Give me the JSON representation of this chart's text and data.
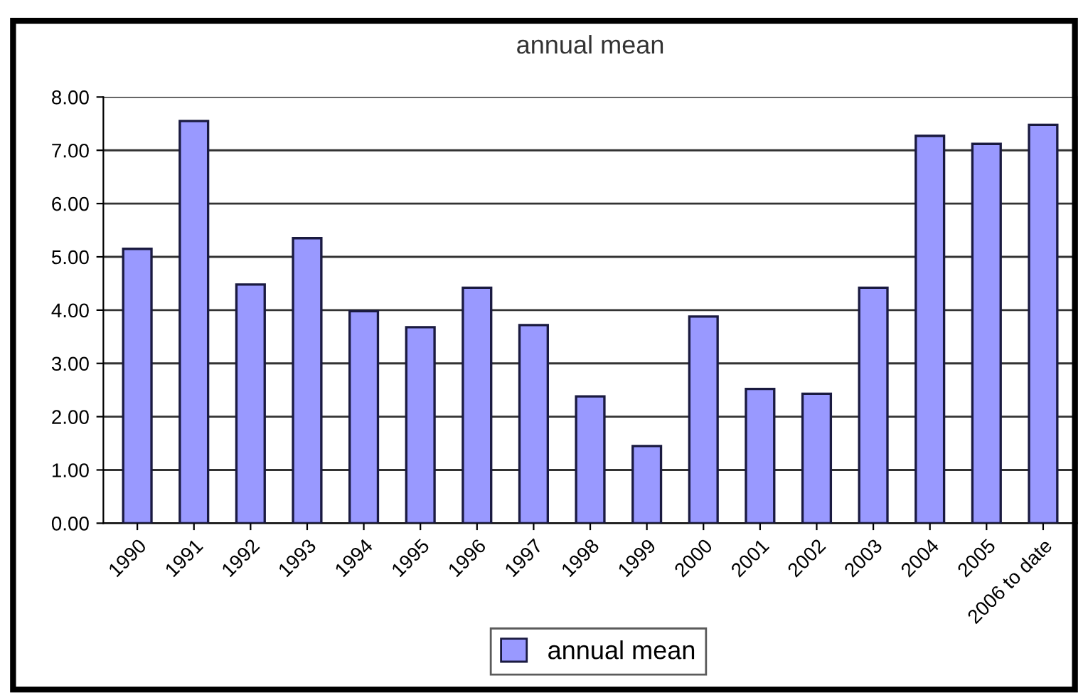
{
  "chart_data": {
    "type": "bar",
    "title": "annual mean",
    "categories": [
      "1990",
      "1991",
      "1992",
      "1993",
      "1994",
      "1995",
      "1996",
      "1997",
      "1998",
      "1999",
      "2000",
      "2001",
      "2002",
      "2003",
      "2004",
      "2005",
      "2006 to date"
    ],
    "series": [
      {
        "name": "annual mean",
        "color": "#9999ff",
        "values": [
          5.15,
          7.55,
          4.48,
          5.35,
          3.98,
          3.68,
          4.42,
          3.72,
          2.38,
          1.45,
          3.88,
          2.52,
          2.43,
          4.42,
          7.27,
          7.12,
          7.48
        ]
      }
    ],
    "ylim": [
      0,
      8
    ],
    "yticks": [
      {
        "value": 0,
        "label": "0.00"
      },
      {
        "value": 1,
        "label": "1.00"
      },
      {
        "value": 2,
        "label": "2.00"
      },
      {
        "value": 3,
        "label": "3.00"
      },
      {
        "value": 4,
        "label": "4.00"
      },
      {
        "value": 5,
        "label": "5.00"
      },
      {
        "value": 6,
        "label": "6.00"
      },
      {
        "value": 7,
        "label": "7.00"
      },
      {
        "value": 8,
        "label": "8.00"
      }
    ],
    "grid": "y",
    "legend": "bottom"
  }
}
